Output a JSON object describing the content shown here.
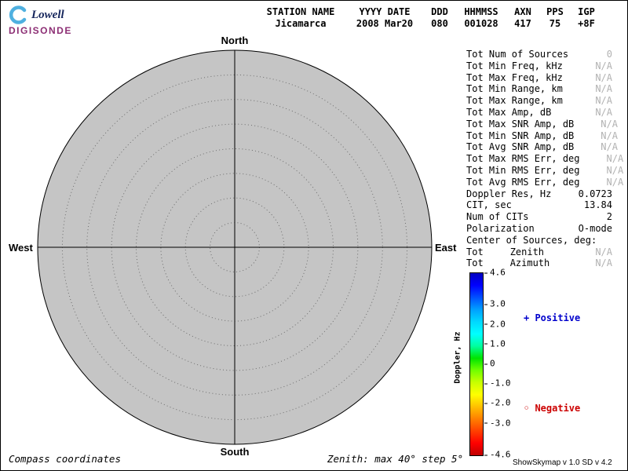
{
  "logo": {
    "brand": "Lowell",
    "product": "DIGISONDE"
  },
  "header": {
    "columns": [
      {
        "label": "STATION NAME",
        "value": "Jicamarca"
      },
      {
        "label": "YYYY DATE",
        "value": "2008 Mar20"
      },
      {
        "label": "DDD",
        "value": "080"
      },
      {
        "label": "HHMMSS",
        "value": "001028"
      },
      {
        "label": "AXN",
        "value": "417"
      },
      {
        "label": "PPS",
        "value": "75"
      },
      {
        "label": "IGP",
        "value": "+8F"
      }
    ]
  },
  "skymap": {
    "compass": {
      "north": "North",
      "south": "South",
      "west": "West",
      "east": "East"
    }
  },
  "chart_data": {
    "type": "scatter",
    "projection": "polar-compass-skymap",
    "title": "Digisonde skymap, Jicamarca 2008 Mar20 080 001028",
    "points": [],
    "num_sources": 0,
    "zenith_rings_deg": [
      5,
      10,
      15,
      20,
      25,
      30,
      35,
      40
    ],
    "zenith_max_deg": 40,
    "zenith_step_deg": 5,
    "compass_labels": [
      "North",
      "East",
      "South",
      "West"
    ],
    "colorbar": {
      "label": "Doppler, Hz",
      "range": [
        -4.6,
        4.6
      ]
    },
    "legend_position": "right"
  },
  "stats": {
    "rows": [
      {
        "label": "Tot Num of Sources",
        "mid": "",
        "value": "0",
        "dim": true
      },
      {
        "label": "Tot Min Freq, kHz",
        "mid": "",
        "value": "N/A",
        "dim": true
      },
      {
        "label": "Tot Max Freq, kHz",
        "mid": "",
        "value": "N/A",
        "dim": true
      },
      {
        "label": "Tot Min Range, km",
        "mid": "",
        "value": "N/A",
        "dim": true
      },
      {
        "label": "Tot Max Range, km",
        "mid": "",
        "value": "N/A",
        "dim": true
      },
      {
        "label": "Tot Max Amp, dB",
        "mid": "",
        "value": "N/A",
        "dim": true
      },
      {
        "label": "Tot Max SNR Amp, dB",
        "mid": "",
        "value": "N/A",
        "dim": true
      },
      {
        "label": "Tot Min SNR Amp, dB",
        "mid": "",
        "value": "N/A",
        "dim": true
      },
      {
        "label": "Tot Avg SNR Amp, dB",
        "mid": "",
        "value": "N/A",
        "dim": true
      },
      {
        "label": "Tot Max RMS Err, deg",
        "mid": "",
        "value": "N/A",
        "dim": true
      },
      {
        "label": "Tot Min RMS Err, deg",
        "mid": "",
        "value": "N/A",
        "dim": true
      },
      {
        "label": "Tot Avg RMS Err, deg",
        "mid": "",
        "value": "N/A",
        "dim": true
      },
      {
        "label": "Doppler Res, Hz",
        "mid": "",
        "value": "0.0723",
        "dim": false
      },
      {
        "label": "CIT, sec",
        "mid": "",
        "value": "13.84",
        "dim": false
      },
      {
        "label": "Num of CITs",
        "mid": "",
        "value": "2",
        "dim": false
      },
      {
        "label": "Polarization",
        "mid": "",
        "value": "O-mode",
        "dim": false
      },
      {
        "label": "Center of Sources, deg:",
        "mid": "",
        "value": "",
        "dim": false
      },
      {
        "label": "Tot",
        "mid": "Zenith",
        "value": "N/A",
        "dim": true
      },
      {
        "label": "Tot",
        "mid": "Azimuth",
        "value": "N/A",
        "dim": true
      }
    ]
  },
  "colorbar": {
    "title": "Doppler, Hz",
    "max": 4.6,
    "min": -4.6,
    "ticks": [
      4.6,
      3.0,
      2.0,
      1.0,
      0,
      -1.0,
      -2.0,
      -3.0,
      -4.6
    ],
    "tick_labels": [
      "4.6",
      "3.0",
      "2.0",
      "1.0",
      "0",
      "-1.0",
      "-2.0",
      "-3.0",
      "-4.6"
    ],
    "gradient": [
      "#0000c0",
      "#0000ff",
      "#0050ff",
      "#00a0ff",
      "#00d8ff",
      "#00ffff",
      "#00ffa0",
      "#00e400",
      "#70ff00",
      "#c8ff00",
      "#ffff00",
      "#ffc000",
      "#ff8000",
      "#ff4000",
      "#ff0000",
      "#c00000"
    ]
  },
  "legend": {
    "positive_label": "+ Positive",
    "negative_label": "◦ Negative",
    "positive_color": "#0000cc",
    "negative_color": "#cc0000"
  },
  "footer": {
    "left": "Compass coordinates",
    "center": "Zenith: max 40°  step 5°",
    "right": "ShowSkymap v 1.0   SD v 4.2"
  }
}
